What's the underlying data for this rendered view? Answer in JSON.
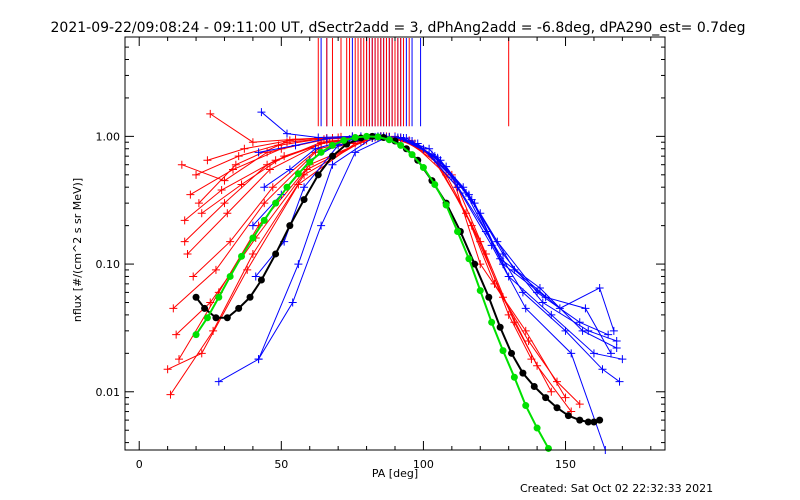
{
  "chart_data": {
    "type": "line",
    "title": "2021-09-22/09:08:24 - 09:11:00 UT, dSectr2add = 3, dPhAng2add = -6.8deg, dPA290_est=  0.7deg",
    "xlabel": "PA [deg]",
    "ylabel": "nflux [#/(cm^2 s sr MeV)]",
    "xlim": [
      -5,
      185
    ],
    "ylim": [
      0.0035,
      6.0
    ],
    "yscale": "log",
    "x_ticks": [
      0,
      50,
      100,
      150
    ],
    "x_tick_labels": [
      "0",
      "50",
      "100",
      "150"
    ],
    "y_ticks": [
      0.01,
      0.1,
      1.0
    ],
    "y_tick_labels": [
      "0.01",
      "0.10",
      "1.00"
    ],
    "grid": false,
    "legend": "none",
    "colors": {
      "red": "#ff0000",
      "blue": "#0000ff",
      "black": "#000000",
      "green": "#00e000"
    },
    "red_bars_x": [
      63,
      66,
      68,
      71,
      73,
      74,
      76,
      77,
      78,
      79,
      80,
      81,
      82,
      83,
      84,
      85,
      86,
      87,
      88,
      89,
      90,
      91,
      92,
      93,
      95,
      130
    ],
    "blue_bars_x": [
      64,
      66,
      75,
      78,
      80,
      81,
      82,
      83,
      84,
      85,
      86,
      87,
      88,
      89,
      90,
      91,
      92,
      94,
      96,
      99
    ],
    "series": [
      {
        "color": "#000000",
        "marker": "filled-dot",
        "x": [
          20,
          23,
          27,
          31,
          35,
          39,
          43,
          48,
          53,
          58,
          63,
          68,
          73,
          78,
          82,
          86,
          90,
          94,
          98,
          103,
          108,
          113,
          118,
          123,
          127,
          131,
          135,
          139,
          143,
          147,
          151,
          155,
          158,
          160,
          162
        ],
        "y": [
          0.055,
          0.045,
          0.038,
          0.038,
          0.045,
          0.055,
          0.075,
          0.12,
          0.2,
          0.32,
          0.5,
          0.7,
          0.87,
          0.97,
          1.0,
          0.98,
          0.92,
          0.8,
          0.65,
          0.45,
          0.3,
          0.18,
          0.1,
          0.055,
          0.032,
          0.02,
          0.014,
          0.011,
          0.009,
          0.0075,
          0.0065,
          0.006,
          0.0058,
          0.0058,
          0.006
        ]
      },
      {
        "color": "#00e000",
        "marker": "filled-dot",
        "x": [
          20,
          24,
          28,
          32,
          36,
          40,
          44,
          48,
          52,
          56,
          60,
          64,
          68,
          72,
          76,
          80,
          84,
          88,
          92,
          96,
          100,
          104,
          108,
          112,
          116,
          120,
          124,
          128,
          132,
          136,
          140,
          144
        ],
        "y": [
          0.028,
          0.038,
          0.055,
          0.08,
          0.115,
          0.16,
          0.22,
          0.3,
          0.4,
          0.51,
          0.63,
          0.75,
          0.85,
          0.93,
          0.98,
          1.0,
          0.99,
          0.94,
          0.85,
          0.72,
          0.57,
          0.42,
          0.29,
          0.18,
          0.11,
          0.062,
          0.035,
          0.021,
          0.013,
          0.0078,
          0.0052,
          0.0036
        ]
      },
      {
        "color": "#ff0000",
        "marker": "plus",
        "x": [
          15,
          30,
          45,
          65,
          85
        ],
        "y": [
          0.6,
          0.45,
          0.75,
          0.95,
          1.0
        ]
      },
      {
        "color": "#ff0000",
        "marker": "plus",
        "x": [
          16,
          29,
          48,
          66,
          84
        ],
        "y": [
          0.22,
          0.38,
          0.65,
          0.9,
          0.98
        ]
      },
      {
        "color": "#ff0000",
        "marker": "plus",
        "x": [
          17,
          31,
          46,
          64,
          86
        ],
        "y": [
          0.12,
          0.25,
          0.55,
          0.88,
          1.0
        ]
      },
      {
        "color": "#ff0000",
        "marker": "plus",
        "x": [
          12,
          27,
          44,
          62,
          82
        ],
        "y": [
          0.045,
          0.09,
          0.3,
          0.75,
          0.97
        ]
      },
      {
        "color": "#ff0000",
        "marker": "plus",
        "x": [
          18,
          33,
          50,
          68,
          88
        ],
        "y": [
          0.35,
          0.55,
          0.8,
          0.97,
          0.99
        ]
      },
      {
        "color": "#ff0000",
        "marker": "plus",
        "x": [
          14,
          28,
          42,
          60,
          80
        ],
        "y": [
          0.018,
          0.06,
          0.2,
          0.6,
          0.93
        ]
      },
      {
        "color": "#ff0000",
        "marker": "plus",
        "x": [
          20,
          35,
          52,
          70,
          90
        ],
        "y": [
          0.5,
          0.7,
          0.9,
          0.98,
          0.97
        ]
      },
      {
        "color": "#ff0000",
        "marker": "plus",
        "x": [
          19,
          32,
          47,
          63,
          83
        ],
        "y": [
          0.08,
          0.15,
          0.4,
          0.8,
          0.98
        ]
      },
      {
        "color": "#ff0000",
        "marker": "plus",
        "x": [
          22,
          36,
          51,
          67,
          87
        ],
        "y": [
          0.25,
          0.42,
          0.7,
          0.92,
          1.0
        ]
      },
      {
        "color": "#ff0000",
        "marker": "plus",
        "x": [
          11,
          26,
          40,
          58,
          78
        ],
        "y": [
          0.0095,
          0.03,
          0.12,
          0.5,
          0.9
        ]
      },
      {
        "color": "#ff0000",
        "marker": "plus",
        "x": [
          24,
          37,
          53,
          71,
          91
        ],
        "y": [
          0.65,
          0.8,
          0.93,
          0.99,
          0.96
        ]
      },
      {
        "color": "#ff0000",
        "marker": "plus",
        "x": [
          13,
          25,
          41,
          59,
          79
        ],
        "y": [
          0.028,
          0.05,
          0.16,
          0.55,
          0.92
        ]
      },
      {
        "color": "#ff0000",
        "marker": "plus",
        "x": [
          25,
          40,
          55,
          75,
          92
        ],
        "y": [
          1.5,
          0.9,
          0.95,
          1.0,
          0.95
        ]
      },
      {
        "color": "#ff0000",
        "marker": "plus",
        "x": [
          16,
          30,
          45,
          64,
          84
        ],
        "y": [
          0.15,
          0.3,
          0.6,
          0.9,
          0.99
        ]
      },
      {
        "color": "#ff0000",
        "marker": "plus",
        "x": [
          10,
          22,
          38,
          56,
          76
        ],
        "y": [
          0.015,
          0.02,
          0.09,
          0.42,
          0.88
        ]
      },
      {
        "color": "#ff0000",
        "marker": "plus",
        "x": [
          21,
          34,
          49,
          66,
          85
        ],
        "y": [
          0.3,
          0.6,
          0.85,
          0.97,
          1.0
        ]
      },
      {
        "color": "#ff0000",
        "marker": "plus",
        "x": [
          90,
          103,
          115,
          125,
          137,
          147,
          155
        ],
        "y": [
          1.0,
          0.7,
          0.25,
          0.07,
          0.025,
          0.012,
          0.008
        ]
      },
      {
        "color": "#ff0000",
        "marker": "plus",
        "x": [
          92,
          105,
          117,
          128,
          140,
          152
        ],
        "y": [
          0.98,
          0.62,
          0.2,
          0.055,
          0.016,
          0.007
        ]
      },
      {
        "color": "#ff0000",
        "marker": "plus",
        "x": [
          88,
          100,
          112,
          122,
          132,
          145
        ],
        "y": [
          0.99,
          0.8,
          0.4,
          0.12,
          0.035,
          0.01
        ]
      },
      {
        "color": "#ff0000",
        "marker": "plus",
        "x": [
          95,
          108,
          120,
          130,
          138
        ],
        "y": [
          0.93,
          0.5,
          0.15,
          0.04,
          0.018
        ]
      },
      {
        "color": "#ff0000",
        "marker": "plus",
        "x": [
          85,
          97,
          110,
          120,
          136,
          150
        ],
        "y": [
          1.0,
          0.88,
          0.5,
          0.1,
          0.03,
          0.009
        ]
      },
      {
        "color": "#0000ff",
        "marker": "plus",
        "x": [
          42,
          55,
          66,
          78,
          88
        ],
        "y": [
          0.75,
          0.85,
          0.96,
          1.0,
          0.99
        ]
      },
      {
        "color": "#0000ff",
        "marker": "plus",
        "x": [
          43,
          52,
          63,
          75,
          86
        ],
        "y": [
          1.55,
          1.05,
          0.98,
          1.0,
          1.0
        ]
      },
      {
        "color": "#0000ff",
        "marker": "plus",
        "x": [
          44,
          53,
          62,
          74,
          85
        ],
        "y": [
          0.4,
          0.55,
          0.8,
          0.95,
          1.0
        ]
      },
      {
        "color": "#0000ff",
        "marker": "plus",
        "x": [
          40,
          50,
          60,
          72,
          84
        ],
        "y": [
          0.2,
          0.35,
          0.65,
          0.92,
          1.0
        ]
      },
      {
        "color": "#0000ff",
        "marker": "plus",
        "x": [
          41,
          51,
          58,
          70,
          83
        ],
        "y": [
          0.08,
          0.15,
          0.4,
          0.85,
          0.99
        ]
      },
      {
        "color": "#0000ff",
        "marker": "plus",
        "x": [
          42,
          54,
          64,
          76,
          87
        ],
        "y": [
          0.018,
          0.05,
          0.2,
          0.75,
          0.98
        ]
      },
      {
        "color": "#0000ff",
        "marker": "plus",
        "x": [
          28,
          42,
          56,
          68,
          82
        ],
        "y": [
          0.012,
          0.018,
          0.1,
          0.6,
          0.97
        ]
      },
      {
        "color": "#0000ff",
        "marker": "plus",
        "x": [
          92,
          104,
          116,
          128,
          142,
          158,
          168
        ],
        "y": [
          0.98,
          0.7,
          0.35,
          0.12,
          0.05,
          0.03,
          0.025
        ]
      },
      {
        "color": "#0000ff",
        "marker": "plus",
        "x": [
          94,
          106,
          118,
          130,
          145,
          160,
          170
        ],
        "y": [
          0.97,
          0.65,
          0.3,
          0.08,
          0.04,
          0.02,
          0.018
        ]
      },
      {
        "color": "#0000ff",
        "marker": "plus",
        "x": [
          96,
          108,
          120,
          132,
          148,
          162,
          167
        ],
        "y": [
          0.92,
          0.58,
          0.25,
          0.09,
          0.045,
          0.065,
          0.03
        ]
      },
      {
        "color": "#0000ff",
        "marker": "plus",
        "x": [
          90,
          102,
          114,
          126,
          140,
          155,
          165
        ],
        "y": [
          0.99,
          0.8,
          0.4,
          0.15,
          0.06,
          0.035,
          0.028
        ]
      },
      {
        "color": "#0000ff",
        "marker": "plus",
        "x": [
          98,
          110,
          122,
          135,
          150,
          163,
          169
        ],
        "y": [
          0.88,
          0.48,
          0.18,
          0.06,
          0.03,
          0.015,
          0.012
        ]
      },
      {
        "color": "#0000ff",
        "marker": "plus",
        "x": [
          93,
          105,
          117,
          128,
          143,
          157,
          166
        ],
        "y": [
          0.97,
          0.68,
          0.32,
          0.1,
          0.055,
          0.045,
          0.02
        ]
      },
      {
        "color": "#0000ff",
        "marker": "plus",
        "x": [
          100,
          112,
          124,
          136,
          152,
          164
        ],
        "y": [
          0.8,
          0.4,
          0.14,
          0.045,
          0.02,
          0.0035
        ]
      },
      {
        "color": "#0000ff",
        "marker": "plus",
        "x": [
          91,
          103,
          115,
          127,
          141,
          156,
          168
        ],
        "y": [
          0.98,
          0.72,
          0.36,
          0.11,
          0.065,
          0.03,
          0.022
        ]
      }
    ]
  },
  "footer": {
    "created": "Created: Sat Oct 02 22:32:33 2021"
  }
}
